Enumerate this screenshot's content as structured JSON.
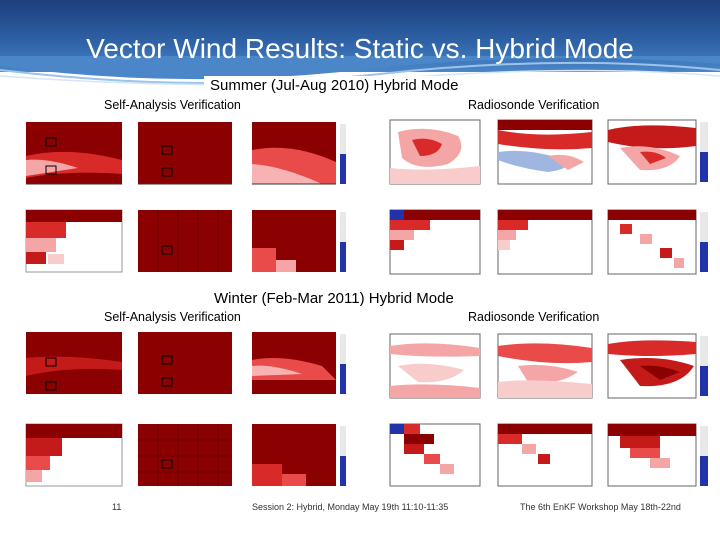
{
  "slide": {
    "title": "Vector Wind Results: Static vs. Hybrid Mode",
    "summer": {
      "heading": "Summer (Jul-Aug 2010) Hybrid Mode",
      "left_label": "Self-Analysis Verification",
      "right_label": "Radiosonde Verification"
    },
    "winter": {
      "heading": "Winter (Feb-Mar 2011) Hybrid Mode",
      "left_label": "Self-Analysis Verification",
      "right_label": "Radiosonde Verification"
    },
    "footer": {
      "page_number": "11",
      "session": "Session 2: Hybrid, Monday May 19th 11:10-11:35",
      "workshop": "The 6th EnKF Workshop May 18th-22nd"
    },
    "colors": {
      "header_dark": "#1c3f7c",
      "header_light": "#4a86c8",
      "dark_red": "#8b0000",
      "red": "#cc1f1f",
      "pink": "#f4a6a6",
      "blue": "#2233aa"
    }
  }
}
